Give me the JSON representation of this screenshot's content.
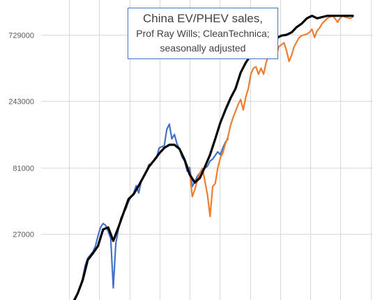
{
  "chart_data": {
    "type": "line",
    "title": [
      "China EV/PHEV sales,",
      "Prof Ray Wills; CleanTechnica;",
      "seasonally adjusted"
    ],
    "xlabel": "",
    "ylabel": "",
    "yscale": "log",
    "ylim": [
      9000,
      1300000
    ],
    "y_tick_values": [
      27000,
      81000,
      243000,
      729000
    ],
    "y_tick_labels": [
      "27000",
      "81000",
      "243000",
      "729000"
    ],
    "x_index_range": [
      0,
      110
    ],
    "vertical_gridlines": 11,
    "horizontal_gridlines": true,
    "series": [
      {
        "color": "#4472C4",
        "x": [
          0,
          1,
          2,
          3,
          4,
          5,
          6,
          7,
          8,
          9,
          10,
          11,
          12,
          13,
          14,
          15,
          16,
          17,
          18,
          19,
          20,
          21,
          22,
          23,
          24,
          25,
          26,
          27,
          28,
          29,
          30,
          31,
          32,
          33,
          34,
          35,
          36,
          37,
          38,
          39,
          40,
          41,
          42,
          43,
          44,
          45,
          46,
          47,
          48,
          49,
          50,
          51,
          52,
          53,
          54,
          55,
          56,
          57,
          58,
          59,
          60,
          61
        ],
        "y": [
          8500,
          9000,
          10000,
          11000,
          13000,
          16000,
          18000,
          19000,
          20000,
          22000,
          26000,
          30000,
          32000,
          31000,
          28000,
          25000,
          11000,
          23000,
          29000,
          35000,
          38000,
          41000,
          46000,
          50000,
          53000,
          60000,
          53000,
          65000,
          70000,
          75000,
          85000,
          86000,
          91000,
          95000,
          112000,
          114000,
          116000,
          152000,
          166000,
          130000,
          140000,
          120000,
          110000,
          96000,
          90000,
          76000,
          81000,
          59000,
          64000,
          70000,
          74000,
          78000,
          80000,
          83000,
          90000,
          93000,
          99000,
          105000,
          100000,
          112000,
          123000,
          130000
        ]
      },
      {
        "color": "#ED7D31",
        "x": [
          45,
          46,
          47,
          48,
          49,
          50,
          51,
          52,
          53,
          54,
          55,
          56,
          57,
          58,
          59,
          60,
          61,
          62,
          63,
          64,
          65,
          66,
          67,
          68,
          69,
          70,
          71,
          72,
          73,
          74,
          75,
          76,
          77,
          78,
          79,
          80,
          81,
          82,
          83,
          84,
          85,
          86,
          87,
          88,
          89,
          90,
          91,
          92,
          93,
          94,
          95,
          96,
          97,
          98,
          99,
          100,
          101,
          102,
          103,
          104,
          105,
          106,
          107,
          108,
          109,
          110
        ],
        "y": [
          84000,
          75000,
          50000,
          56000,
          66000,
          74000,
          80000,
          64000,
          51000,
          36000,
          59000,
          62000,
          80000,
          95000,
          103000,
          120000,
          134000,
          162000,
          185000,
          206000,
          230000,
          250000,
          210000,
          260000,
          300000,
          380000,
          420000,
          430000,
          380000,
          420000,
          380000,
          460000,
          520000,
          560000,
          610000,
          520000,
          600000,
          620000,
          640000,
          560000,
          470000,
          520000,
          600000,
          650000,
          700000,
          720000,
          730000,
          740000,
          760000,
          800000,
          700000,
          780000,
          820000,
          880000,
          920000,
          960000,
          980000,
          1000000,
          960000,
          900000,
          960000,
          1000000,
          980000,
          970000,
          960000,
          980000
        ]
      },
      {
        "color": "#000000",
        "x": [
          0,
          2,
          4,
          6,
          8,
          10,
          12,
          14,
          16,
          18,
          20,
          22,
          24,
          26,
          28,
          30,
          32,
          34,
          36,
          38,
          40,
          42,
          44,
          46,
          48,
          50,
          52,
          54,
          56,
          58,
          60,
          62,
          64,
          66,
          68,
          70,
          72,
          74,
          76,
          78,
          80,
          82,
          84,
          86,
          88,
          90,
          92,
          94,
          96,
          98,
          100,
          102,
          104,
          106,
          108,
          110
        ],
        "y": [
          8500,
          10000,
          12500,
          17500,
          19500,
          22000,
          29000,
          30000,
          24000,
          30000,
          38000,
          48000,
          52000,
          60000,
          70000,
          82000,
          91000,
          102000,
          112000,
          118000,
          118000,
          110000,
          92000,
          72000,
          63000,
          68000,
          82000,
          100000,
          130000,
          170000,
          210000,
          255000,
          300000,
          390000,
          460000,
          520000,
          570000,
          610000,
          590000,
          640000,
          690000,
          720000,
          730000,
          760000,
          830000,
          880000,
          960000,
          1000000,
          960000,
          980000,
          1000000,
          1000000,
          1000000,
          1000000,
          1000000,
          1000000
        ]
      }
    ]
  }
}
